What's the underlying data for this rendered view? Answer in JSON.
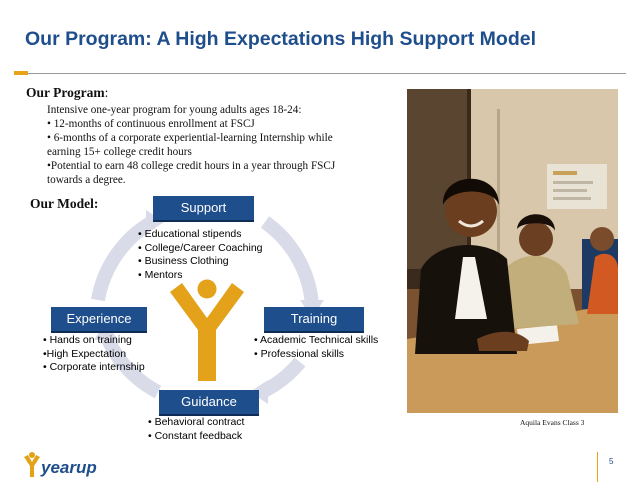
{
  "slide": {
    "title": "Our Program: A High Expectations High Support Model",
    "page_number": "5"
  },
  "program": {
    "heading": "Our Program",
    "heading_suffix": ":",
    "lines": [
      "Intensive one-year program for young adults ages 18-24:",
      "• 12-months of continuous enrollment at FSCJ",
      "• 6-months of a corporate experiential-learning Internship while",
      "earning 15+ college credit hours",
      "•Potential to earn 48  college credit hours in a year through FSCJ",
      "towards a degree."
    ]
  },
  "model": {
    "heading": "Our Model:",
    "support": {
      "label": "Support",
      "items": [
        "• Educational stipends",
        "• College/Career Coaching",
        "• Business Clothing",
        "• Mentors"
      ]
    },
    "experience": {
      "label": "Experience",
      "items": [
        "• Hands on training",
        "•High Expectation",
        "• Corporate internship"
      ]
    },
    "training": {
      "label": "Training",
      "items": [
        "• Academic Technical skills",
        "• Professional skills"
      ]
    },
    "guidance": {
      "label": "Guidance",
      "items": [
        "• Behavioral contract",
        "• Constant feedback"
      ]
    }
  },
  "photo": {
    "caption": "Aquila Evans Class 3"
  },
  "logo": {
    "text": "yearup"
  },
  "colors": {
    "title_blue": "#1f4e8c",
    "box_blue": "#1f4e8c",
    "accent_gold": "#e8a31a",
    "cycle_lavender": "#d9dbe9"
  }
}
